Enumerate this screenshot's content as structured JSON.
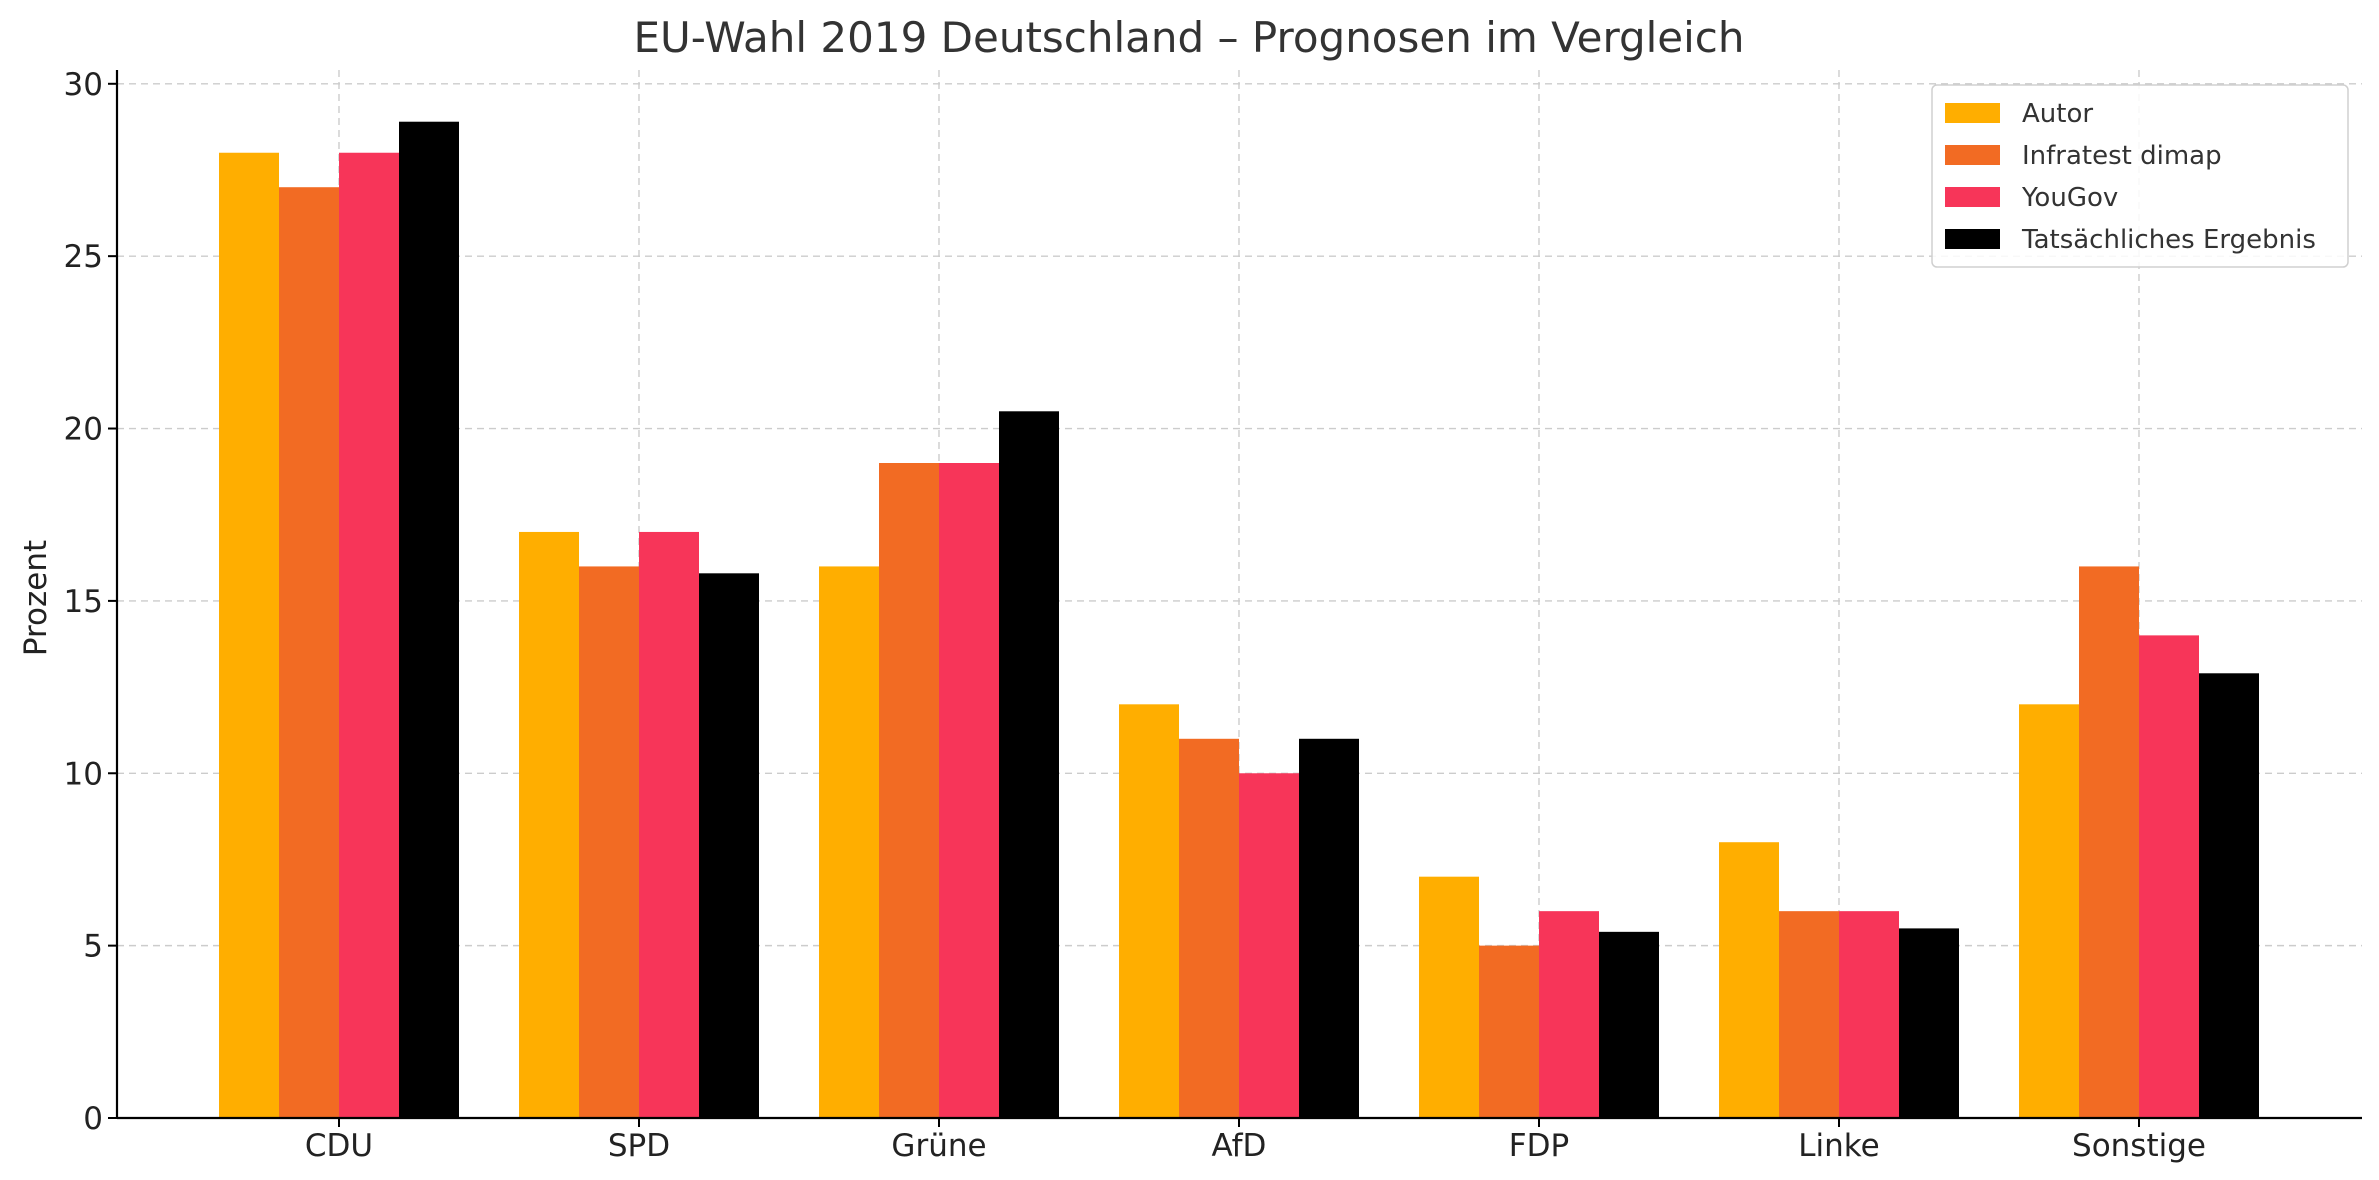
{
  "chart_data": {
    "type": "bar",
    "title": "EU-Wahl 2019 Deutschland – Prognosen im Vergleich",
    "xlabel": "",
    "ylabel": "Prozent",
    "ylim": [
      0,
      30.4
    ],
    "yticks": [
      0,
      5,
      10,
      15,
      20,
      25,
      30
    ],
    "grid": true,
    "legend_position": "top-right",
    "categories": [
      "CDU",
      "SPD",
      "Grüne",
      "AfD",
      "FDP",
      "Linke",
      "Sonstige"
    ],
    "series": [
      {
        "name": "Autor",
        "color": "#FFAE00",
        "values": [
          28,
          17,
          16,
          12,
          7,
          8,
          12
        ]
      },
      {
        "name": "Infratest dimap",
        "color": "#F26B23",
        "values": [
          27,
          16,
          19,
          11,
          5,
          6,
          16
        ]
      },
      {
        "name": "YouGov",
        "color": "#F73559",
        "values": [
          28,
          17,
          19,
          10,
          6,
          6,
          14
        ]
      },
      {
        "name": "Tatsächliches Ergebnis",
        "color": "#000000",
        "values": [
          28.9,
          15.8,
          20.5,
          11.0,
          5.4,
          5.5,
          12.9
        ]
      }
    ]
  }
}
